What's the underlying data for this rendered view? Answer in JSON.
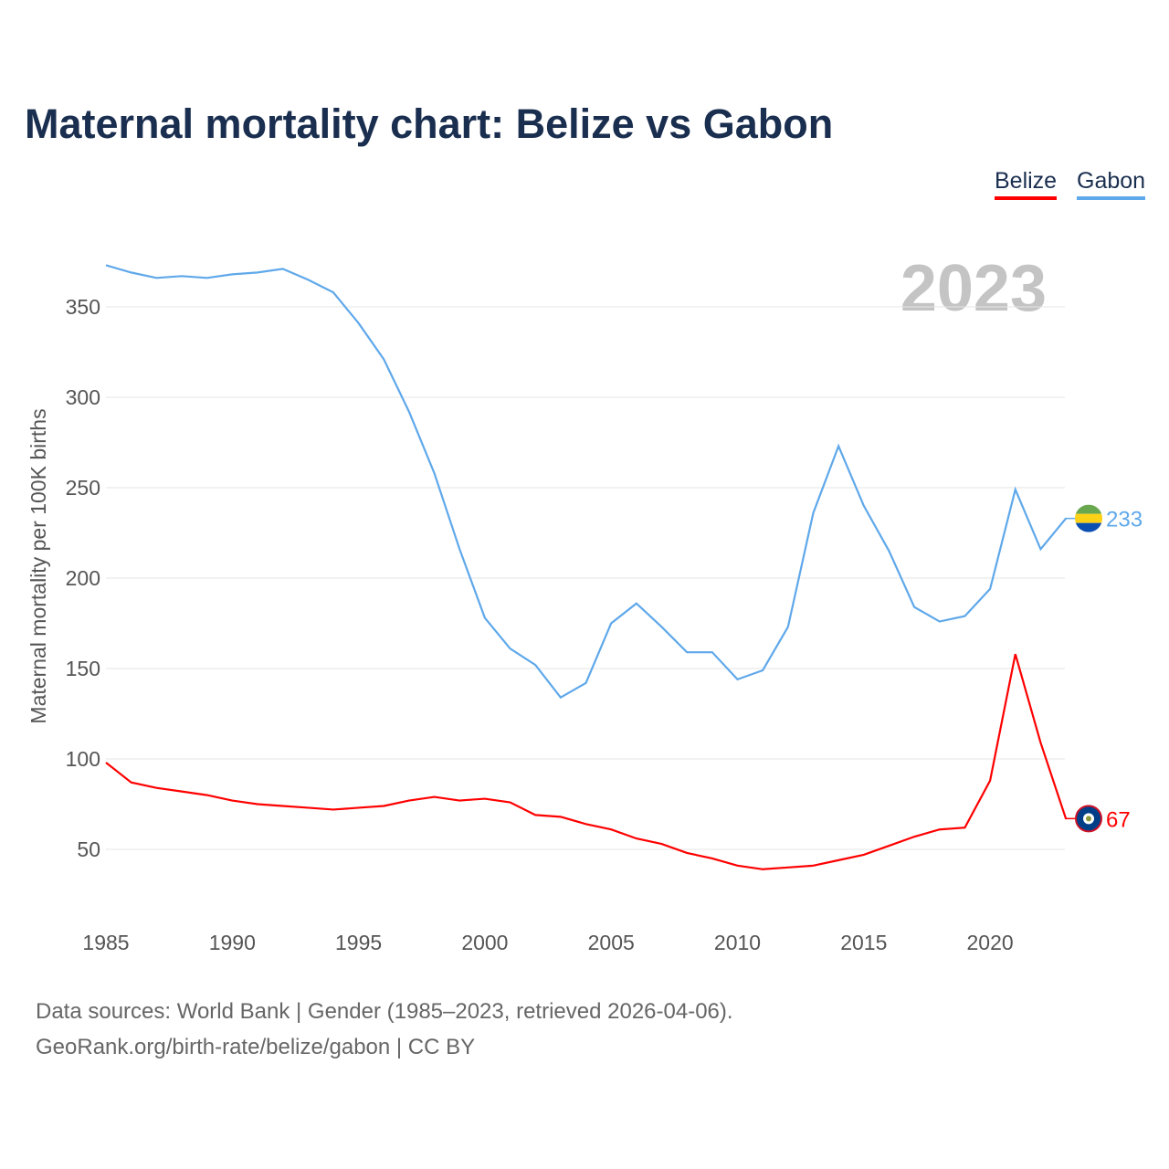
{
  "title": "Maternal mortality chart: Belize vs Gabon",
  "legend": [
    "Belize",
    "Gabon"
  ],
  "year_watermark": "2023",
  "footer": {
    "line1": "Data sources: World Bank | Gender (1985–2023, retrieved 2026-04-06).",
    "line2": "GeoRank.org/birth-rate/belize/gabon | CC BY"
  },
  "chart_data": {
    "type": "line",
    "title": "Maternal mortality chart: Belize vs Gabon",
    "xlabel": "",
    "ylabel": "Maternal mortality per 100K births",
    "xlim": [
      1985,
      2023
    ],
    "ylim": [
      25,
      380
    ],
    "x_ticks": [
      1985,
      1990,
      1995,
      2000,
      2005,
      2010,
      2015,
      2020
    ],
    "y_ticks": [
      50,
      100,
      150,
      200,
      250,
      300,
      350
    ],
    "grid": true,
    "legend_position": "top-right",
    "x": [
      1985,
      1986,
      1987,
      1988,
      1989,
      1990,
      1991,
      1992,
      1993,
      1994,
      1995,
      1996,
      1997,
      1998,
      1999,
      2000,
      2001,
      2002,
      2003,
      2004,
      2005,
      2006,
      2007,
      2008,
      2009,
      2010,
      2011,
      2012,
      2013,
      2014,
      2015,
      2016,
      2017,
      2018,
      2019,
      2020,
      2021,
      2022,
      2023
    ],
    "series": [
      {
        "name": "Belize",
        "color": "#ff0000",
        "end_label": "67",
        "values": [
          98,
          87,
          84,
          82,
          80,
          77,
          75,
          74,
          73,
          72,
          73,
          74,
          77,
          79,
          77,
          78,
          76,
          69,
          68,
          64,
          61,
          56,
          53,
          48,
          45,
          41,
          39,
          40,
          41,
          44,
          47,
          52,
          57,
          61,
          62,
          88,
          158,
          109,
          67
        ]
      },
      {
        "name": "Gabon",
        "color": "#5fa8ea",
        "end_label": "233",
        "values": [
          373,
          369,
          366,
          367,
          366,
          368,
          369,
          371,
          365,
          358,
          341,
          321,
          292,
          258,
          216,
          178,
          161,
          152,
          134,
          142,
          175,
          186,
          173,
          159,
          159,
          144,
          149,
          173,
          236,
          273,
          240,
          215,
          184,
          176,
          179,
          194,
          249,
          216,
          233
        ]
      }
    ]
  }
}
